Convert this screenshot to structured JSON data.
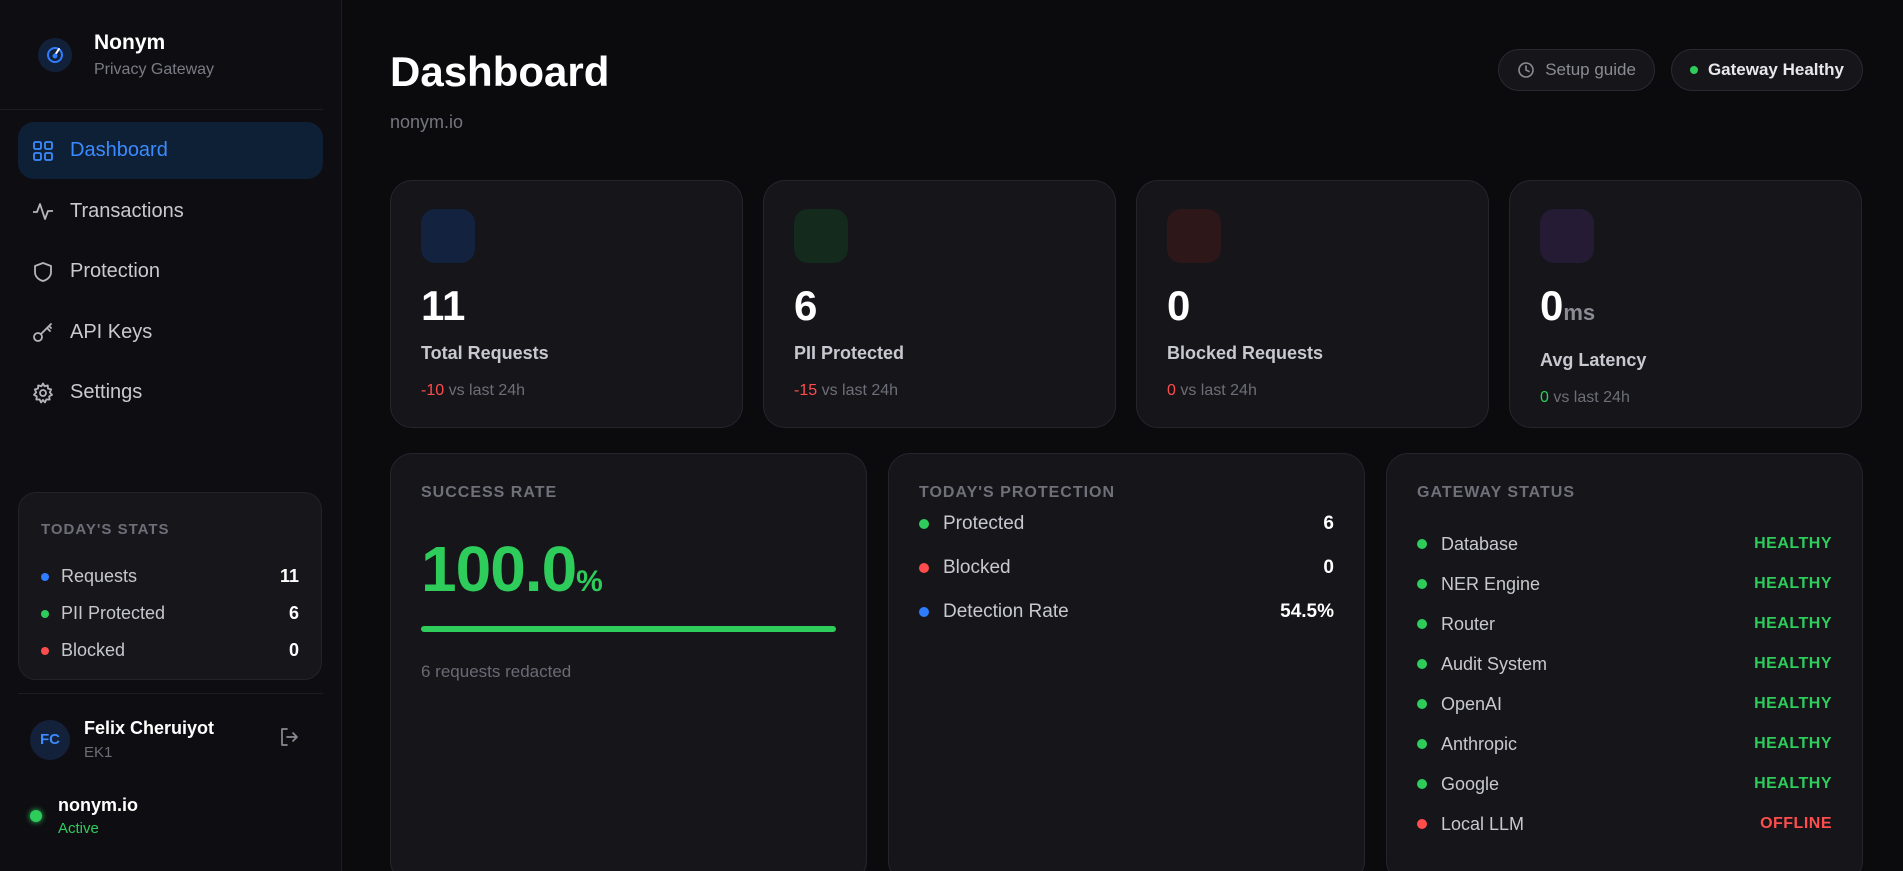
{
  "brand": {
    "title": "Nonym",
    "subtitle": "Privacy Gateway"
  },
  "nav": [
    {
      "label": "Dashboard",
      "icon": "grid-icon",
      "active": true
    },
    {
      "label": "Transactions",
      "icon": "activity-icon",
      "active": false
    },
    {
      "label": "Protection",
      "icon": "shield-icon",
      "active": false
    },
    {
      "label": "API Keys",
      "icon": "key-icon",
      "active": false
    },
    {
      "label": "Settings",
      "icon": "gear-icon",
      "active": false
    }
  ],
  "today_stats": {
    "title": "TODAY'S STATS",
    "rows": [
      {
        "label": "Requests",
        "value": "11",
        "color": "#2f7dff"
      },
      {
        "label": "PII Protected",
        "value": "6",
        "color": "#2ecc5b"
      },
      {
        "label": "Blocked",
        "value": "0",
        "color": "#ff4d4d"
      }
    ]
  },
  "user": {
    "initials": "FC",
    "name": "Felix Cheruiyot",
    "sub": "EK1"
  },
  "org": {
    "name": "nonym.io",
    "status": "Active"
  },
  "header": {
    "title": "Dashboard",
    "subtitle": "nonym.io",
    "setup_label": "Setup guide",
    "health_label": "Gateway Healthy"
  },
  "metrics": [
    {
      "value": "11",
      "unit": "",
      "label": "Total Requests",
      "delta": "-10",
      "delta_suffix": "vs last 24h",
      "delta_color": "#ff4d4d",
      "icon_bg": "#13223e"
    },
    {
      "value": "6",
      "unit": "",
      "label": "PII Protected",
      "delta": "-15",
      "delta_suffix": "vs last 24h",
      "delta_color": "#ff4d4d",
      "icon_bg": "#132a1d"
    },
    {
      "value": "0",
      "unit": "",
      "label": "Blocked Requests",
      "delta": "0",
      "delta_suffix": "vs last 24h",
      "delta_color": "#ff4d4d",
      "icon_bg": "#2e1719"
    },
    {
      "value": "0",
      "unit": "ms",
      "label": "Avg Latency",
      "delta": "0",
      "delta_suffix": "vs last 24h",
      "delta_color": "#2ecc5b",
      "icon_bg": "#251b34"
    }
  ],
  "success_rate": {
    "title": "SUCCESS RATE",
    "value": "100.0",
    "unit": "%",
    "fraction": 1.0,
    "note": "6 requests redacted"
  },
  "protection": {
    "title": "TODAY'S PROTECTION",
    "rows": [
      {
        "label": "Protected",
        "value": "6",
        "color": "#2ecc5b"
      },
      {
        "label": "Blocked",
        "value": "0",
        "color": "#ff4d4d"
      },
      {
        "label": "Detection Rate",
        "value": "54.5%",
        "color": "#2f7dff"
      }
    ]
  },
  "gateway": {
    "title": "GATEWAY STATUS",
    "rows": [
      {
        "label": "Database",
        "status": "HEALTHY",
        "color": "#2ecc5b"
      },
      {
        "label": "NER Engine",
        "status": "HEALTHY",
        "color": "#2ecc5b"
      },
      {
        "label": "Router",
        "status": "HEALTHY",
        "color": "#2ecc5b"
      },
      {
        "label": "Audit System",
        "status": "HEALTHY",
        "color": "#2ecc5b"
      },
      {
        "label": "OpenAI",
        "status": "HEALTHY",
        "color": "#2ecc5b"
      },
      {
        "label": "Anthropic",
        "status": "HEALTHY",
        "color": "#2ecc5b"
      },
      {
        "label": "Google",
        "status": "HEALTHY",
        "color": "#2ecc5b"
      },
      {
        "label": "Local LLM",
        "status": "OFFLINE",
        "color": "#ff4d4d"
      }
    ]
  }
}
